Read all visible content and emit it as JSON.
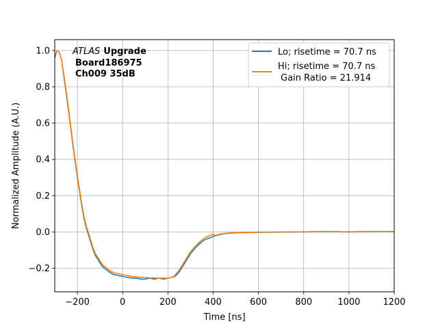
{
  "chart_data": {
    "type": "line",
    "xlabel": "Time [ns]",
    "ylabel": "Normalized Amplitude (A.U.)",
    "xlim": [
      -300,
      1200
    ],
    "ylim": [
      -0.33,
      1.06
    ],
    "xticks": [
      -200,
      0,
      200,
      400,
      600,
      800,
      1000,
      1200
    ],
    "xtick_labels": [
      "−200",
      "0",
      "200",
      "400",
      "600",
      "800",
      "1000",
      "1200"
    ],
    "yticks": [
      -0.2,
      0.0,
      0.2,
      0.4,
      0.6,
      0.8,
      1.0
    ],
    "ytick_labels": [
      "−0.2",
      "0.0",
      "0.2",
      "0.4",
      "0.6",
      "0.8",
      "1.0"
    ],
    "grid": true,
    "legend_position": "top-right",
    "annotation": {
      "line1_italic": "ATLAS",
      "line1_bold": "Upgrade",
      "line2": "Board186975",
      "line3": "Ch009 35dB"
    },
    "series": [
      {
        "name": "Lo; risetime = 70.7 ns",
        "color": "#1f77b4",
        "x": [
          -300,
          -290,
          -280,
          -270,
          -260,
          -250,
          -240,
          -230,
          -220,
          -210,
          -200,
          -190,
          -180,
          -170,
          -160,
          -150,
          -140,
          -130,
          -120,
          -110,
          -100,
          -90,
          -80,
          -60,
          -40,
          -20,
          0,
          20,
          40,
          60,
          80,
          100,
          120,
          140,
          160,
          180,
          200,
          220,
          230,
          240,
          250,
          260,
          270,
          280,
          300,
          320,
          340,
          360,
          380,
          400,
          420,
          440,
          460,
          500,
          550,
          600,
          700,
          800,
          900,
          1000,
          1100,
          1200
        ],
        "y": [
          0.96,
          1.0,
          0.99,
          0.95,
          0.86,
          0.77,
          0.68,
          0.58,
          0.48,
          0.39,
          0.3,
          0.22,
          0.14,
          0.07,
          0.02,
          -0.02,
          -0.06,
          -0.1,
          -0.13,
          -0.15,
          -0.17,
          -0.19,
          -0.2,
          -0.22,
          -0.235,
          -0.24,
          -0.245,
          -0.25,
          -0.255,
          -0.255,
          -0.26,
          -0.26,
          -0.255,
          -0.26,
          -0.255,
          -0.26,
          -0.255,
          -0.25,
          -0.245,
          -0.235,
          -0.22,
          -0.2,
          -0.18,
          -0.16,
          -0.12,
          -0.09,
          -0.065,
          -0.045,
          -0.035,
          -0.025,
          -0.018,
          -0.012,
          -0.008,
          -0.005,
          -0.003,
          -0.002,
          -0.001,
          0.0,
          0.001,
          0.0,
          0.001,
          0.001
        ]
      },
      {
        "name": "Hi; risetime = 70.7 ns",
        "name_line2": " Gain Ratio = 21.914",
        "color": "#ff7f0e",
        "x": [
          -300,
          -290,
          -280,
          -270,
          -260,
          -250,
          -240,
          -230,
          -220,
          -210,
          -200,
          -190,
          -180,
          -170,
          -160,
          -150,
          -140,
          -130,
          -120,
          -110,
          -100,
          -90,
          -80,
          -60,
          -40,
          -20,
          0,
          20,
          40,
          60,
          80,
          100,
          120,
          140,
          160,
          180,
          200,
          220,
          230,
          240,
          250,
          260,
          270,
          280,
          300,
          320,
          340,
          360,
          380,
          400,
          410,
          420,
          440,
          460,
          500,
          550,
          600,
          700,
          800,
          900,
          1000,
          1100,
          1200
        ],
        "y": [
          0.97,
          1.0,
          0.99,
          0.95,
          0.87,
          0.78,
          0.69,
          0.59,
          0.49,
          0.4,
          0.31,
          0.23,
          0.15,
          0.08,
          0.03,
          -0.01,
          -0.05,
          -0.09,
          -0.12,
          -0.14,
          -0.16,
          -0.18,
          -0.19,
          -0.21,
          -0.225,
          -0.23,
          -0.235,
          -0.24,
          -0.245,
          -0.248,
          -0.25,
          -0.252,
          -0.253,
          -0.254,
          -0.255,
          -0.255,
          -0.255,
          -0.25,
          -0.24,
          -0.225,
          -0.21,
          -0.19,
          -0.17,
          -0.15,
          -0.11,
          -0.08,
          -0.055,
          -0.035,
          -0.022,
          -0.012,
          -0.02,
          -0.016,
          -0.01,
          -0.007,
          -0.004,
          -0.002,
          -0.001,
          0.0,
          0.001,
          0.002,
          0.001,
          0.002,
          0.002
        ]
      }
    ]
  }
}
